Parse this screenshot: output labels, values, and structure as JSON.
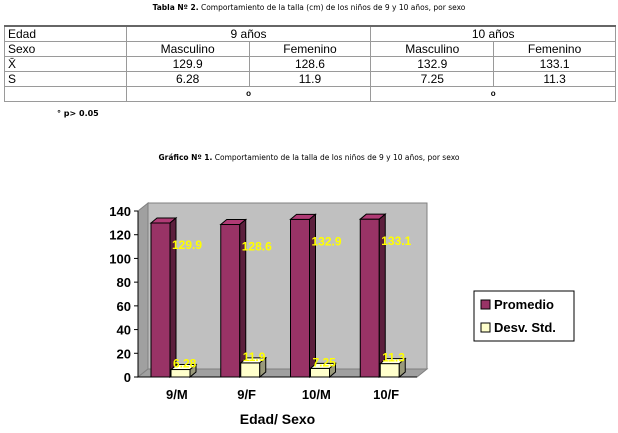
{
  "table": {
    "caption_bold": "Tabla Nº 2.",
    "caption_text": " Comportamiento de la talla (cm) de los niños de 9 y 10 años, por sexo",
    "row_edad": {
      "label": "Edad",
      "g1": "9 años",
      "g2": "10 años"
    },
    "row_sexo": {
      "label": "Sexo",
      "c1": "Masculino",
      "c2": "Femenino",
      "c3": "Masculino",
      "c4": "Femenino"
    },
    "row_mean": {
      "label": "X̄",
      "c1": "129.9",
      "c2": "128.6",
      "c3": "132.9",
      "c4": "133.1"
    },
    "row_sd": {
      "label": "S",
      "c1": "6.28",
      "c2": "11.9",
      "c3": "7.25",
      "c4": "11.3"
    },
    "row_p": {
      "g1": "o",
      "g2": "o"
    },
    "footnote": "° p> 0.05"
  },
  "chart_caption": {
    "bold": "Gráfico Nº 1.",
    "text": " Comportamiento de la talla de los niños de 9 y 10 años, por sexo"
  },
  "chart_data": {
    "type": "bar",
    "categories": [
      "9/M",
      "9/F",
      "10/M",
      "10/F"
    ],
    "series": [
      {
        "name": "Promedio",
        "values": [
          129.9,
          128.6,
          132.9,
          133.1
        ],
        "labels": [
          "129.9",
          "128.6",
          "132.9",
          "133.1"
        ],
        "color": "#993366"
      },
      {
        "name": "Desv. Std.",
        "values": [
          6.28,
          11.9,
          7.25,
          11.3
        ],
        "labels": [
          "6.28",
          "11.9",
          "7.25",
          "11.3"
        ],
        "color": "#ffffcc"
      }
    ],
    "xlabel": "Edad/ Sexo",
    "ylabel": "",
    "ylim": [
      0,
      140
    ],
    "yticks": [
      0,
      20,
      40,
      60,
      80,
      100,
      120,
      140
    ],
    "legend_position": "right",
    "grid": false,
    "plot_background": "#c0c0c0",
    "data_label_color": "#ffff00"
  }
}
